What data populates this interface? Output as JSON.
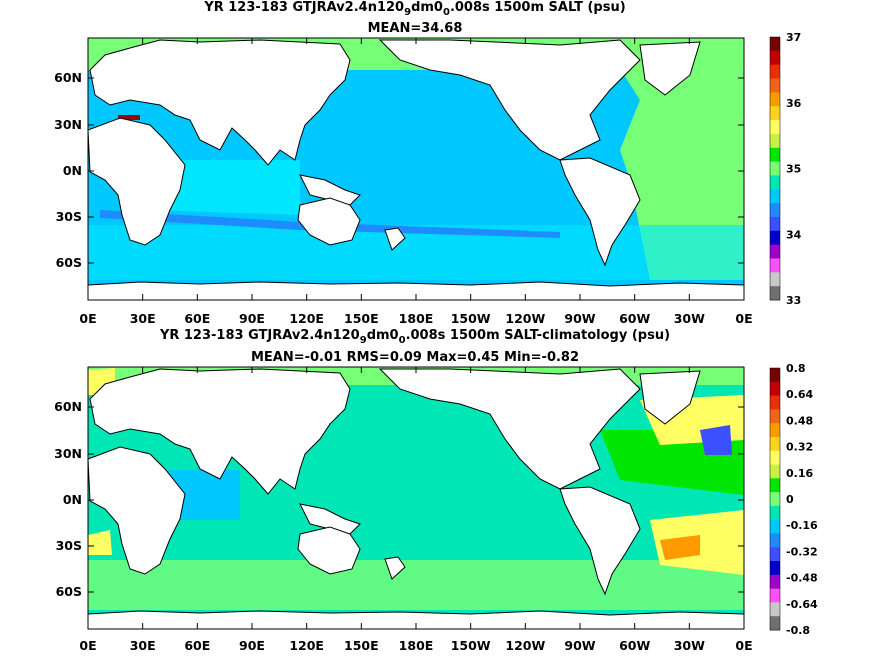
{
  "panels": [
    {
      "title_prefix": "YR 123-183 GTJRAv2.4n120",
      "title_sub1": "9",
      "title_mid": "dm0",
      "title_sub2": "0",
      "title_suffix": ".008s 1500m SALT (psu)",
      "stats": "MEAN=34.68",
      "lon_ticks": [
        "0E",
        "30E",
        "60E",
        "90E",
        "120E",
        "150E",
        "180E",
        "150W",
        "120W",
        "90W",
        "60W",
        "30W",
        "0E"
      ],
      "lat_ticks": [
        "60N",
        "30N",
        "0N",
        "30S",
        "60S"
      ],
      "colorbar": {
        "labels": [
          "37",
          "36",
          "35",
          "34",
          "33"
        ],
        "colors": [
          "#7a0000",
          "#c00000",
          "#e83000",
          "#f06418",
          "#ff9a00",
          "#ffd21e",
          "#ffff64",
          "#c8f046",
          "#00e600",
          "#78ff78",
          "#00e6b4",
          "#00c8ff",
          "#1e8cff",
          "#3c50ff",
          "#0000c8",
          "#a000c8",
          "#ff50ff",
          "#c8c8c8",
          "#707070"
        ],
        "fill_colors": {
          "ocean": "#00c8ff",
          "high": "#78ff78",
          "deep": "#1e8cff",
          "med": "#a00000"
        }
      }
    },
    {
      "title_prefix": "YR 123-183 GTJRAv2.4n120",
      "title_sub1": "9",
      "title_mid": "dm0",
      "title_sub2": "0",
      "title_suffix": ".008s 1500m SALT-climatology (psu)",
      "stats": "MEAN=-0.01   RMS=0.09   Max=0.45   Min=-0.82",
      "lon_ticks": [
        "0E",
        "30E",
        "60E",
        "90E",
        "120E",
        "150E",
        "180E",
        "150W",
        "120W",
        "90W",
        "60W",
        "30W",
        "0E"
      ],
      "lat_ticks": [
        "60N",
        "30N",
        "0N",
        "30S",
        "60S"
      ],
      "colorbar": {
        "labels": [
          "0.8",
          "0.64",
          "0.48",
          "0.32",
          "0.16",
          "0",
          "-0.16",
          "-0.32",
          "-0.48",
          "-0.64",
          "-0.8"
        ],
        "colors": [
          "#7a0000",
          "#c00000",
          "#e83000",
          "#f06418",
          "#ff9a00",
          "#ffd21e",
          "#ffff64",
          "#c8f046",
          "#00e600",
          "#78ff78",
          "#00e6b4",
          "#00c8ff",
          "#1e8cff",
          "#3c50ff",
          "#0000c8",
          "#a000c8",
          "#ff50ff",
          "#c8c8c8",
          "#707070"
        ],
        "fill_colors": {
          "ocean": "#00e6b4",
          "pos": "#78ff78",
          "yellow": "#ffff64",
          "neg": "#00c8ff"
        }
      }
    }
  ],
  "chart_data": [
    {
      "type": "heatmap",
      "title": "YR 123-183 GTJRAv2.4n120_9dm0_0.008s 1500m SALT (psu)",
      "subtitle": "MEAN=34.68",
      "x_ticks": [
        "0E",
        "30E",
        "60E",
        "90E",
        "120E",
        "150E",
        "180E",
        "150W",
        "120W",
        "90W",
        "60W",
        "30W",
        "0E"
      ],
      "y_ticks": [
        "60N",
        "30N",
        "0N",
        "30S",
        "60S"
      ],
      "xlim": [
        0,
        360
      ],
      "ylim": [
        -78,
        90
      ],
      "colorbar_range": [
        33,
        37
      ],
      "colorbar_ticks": [
        37,
        36,
        35,
        34,
        33
      ],
      "mean": 34.68
    },
    {
      "type": "heatmap",
      "title": "YR 123-183 GTJRAv2.4n120_9dm0_0.008s 1500m SALT-climatology (psu)",
      "subtitle": "MEAN=-0.01   RMS=0.09   Max=0.45   Min=-0.82",
      "x_ticks": [
        "0E",
        "30E",
        "60E",
        "90E",
        "120E",
        "150E",
        "180E",
        "150W",
        "120W",
        "90W",
        "60W",
        "30W",
        "0E"
      ],
      "y_ticks": [
        "60N",
        "30N",
        "0N",
        "30S",
        "60S"
      ],
      "xlim": [
        0,
        360
      ],
      "ylim": [
        -78,
        90
      ],
      "colorbar_range": [
        -0.8,
        0.8
      ],
      "colorbar_ticks": [
        0.8,
        0.64,
        0.48,
        0.32,
        0.16,
        0,
        -0.16,
        -0.32,
        -0.48,
        -0.64,
        -0.8
      ],
      "mean": -0.01,
      "rms": 0.09,
      "max": 0.45,
      "min": -0.82
    }
  ]
}
